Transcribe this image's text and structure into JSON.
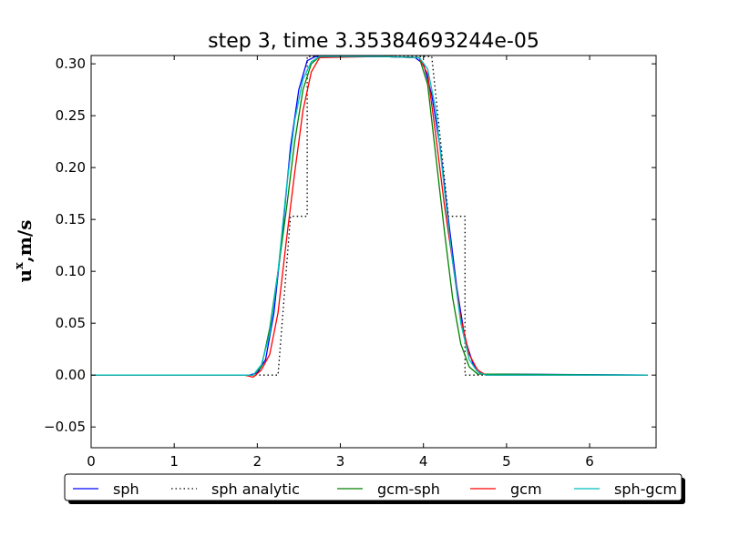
{
  "chart_data": {
    "type": "line",
    "title": "step 3, time 3.35384693244e-05",
    "xlabel": "",
    "ylabel_main": "u",
    "ylabel_sup": "x",
    "ylabel_unit": ",m/s",
    "xlim": [
      0,
      6.8
    ],
    "ylim": [
      -0.07,
      0.308
    ],
    "xticks": [
      0,
      1,
      2,
      3,
      4,
      5,
      6
    ],
    "yticks": [
      -0.05,
      0.0,
      0.05,
      0.1,
      0.15,
      0.2,
      0.25,
      0.3
    ],
    "ytick_labels": [
      "−0.05",
      "0.00",
      "0.05",
      "0.10",
      "0.15",
      "0.20",
      "0.25",
      "0.30"
    ],
    "grid": false,
    "legend_position": "below",
    "series": [
      {
        "name": "sph",
        "color": "#0000ff",
        "style": "solid",
        "x": [
          0,
          1.9,
          2.0,
          2.1,
          2.2,
          2.3,
          2.4,
          2.5,
          2.6,
          2.7,
          2.8,
          3.5,
          3.9,
          4.0,
          4.1,
          4.2,
          4.3,
          4.4,
          4.5,
          4.6,
          4.7,
          6.7
        ],
        "y": [
          0,
          0,
          0.002,
          0.015,
          0.06,
          0.135,
          0.22,
          0.275,
          0.303,
          0.307,
          0.307,
          0.307,
          0.306,
          0.3,
          0.27,
          0.22,
          0.15,
          0.085,
          0.035,
          0.01,
          0.001,
          0
        ]
      },
      {
        "name": "sph analytic",
        "color": "#000000",
        "style": "dotted",
        "x": [
          0,
          2.25,
          2.25,
          2.4,
          2.4,
          2.6,
          2.6,
          4.1,
          4.1,
          4.3,
          4.3,
          4.5,
          4.5,
          6.7
        ],
        "y": [
          0,
          0,
          0.0,
          0.153,
          0.153,
          0.153,
          0.307,
          0.307,
          0.307,
          0.153,
          0.153,
          0.153,
          0.0,
          0
        ]
      },
      {
        "name": "gcm-sph",
        "color": "#008000",
        "style": "solid",
        "x": [
          0,
          1.95,
          2.05,
          2.15,
          2.25,
          2.35,
          2.45,
          2.55,
          2.65,
          2.75,
          3.5,
          3.95,
          4.05,
          4.15,
          4.25,
          4.35,
          4.45,
          4.55,
          4.65,
          6.7
        ],
        "y": [
          0,
          0,
          0.008,
          0.045,
          0.1,
          0.16,
          0.225,
          0.275,
          0.3,
          0.307,
          0.307,
          0.306,
          0.28,
          0.21,
          0.14,
          0.075,
          0.03,
          0.008,
          0.001,
          0
        ]
      },
      {
        "name": "gcm",
        "color": "#ff0000",
        "style": "solid",
        "x": [
          0,
          1.85,
          1.95,
          2.05,
          2.15,
          2.25,
          2.35,
          2.45,
          2.55,
          2.65,
          2.75,
          3.5,
          3.95,
          4.05,
          4.15,
          4.25,
          4.35,
          4.45,
          4.55,
          4.65,
          4.75,
          6.7
        ],
        "y": [
          0,
          0,
          -0.002,
          0.005,
          0.02,
          0.06,
          0.13,
          0.195,
          0.255,
          0.292,
          0.306,
          0.307,
          0.306,
          0.29,
          0.23,
          0.165,
          0.11,
          0.055,
          0.02,
          0.005,
          0.0,
          0
        ]
      },
      {
        "name": "sph-gcm",
        "color": "#00bfbf",
        "style": "solid",
        "x": [
          0,
          1.95,
          2.05,
          2.15,
          2.25,
          2.35,
          2.45,
          2.55,
          2.65,
          2.75,
          3.5,
          3.95,
          4.05,
          4.15,
          4.25,
          4.35,
          4.45,
          4.55,
          4.65,
          4.75,
          6.7
        ],
        "y": [
          0,
          0,
          0.01,
          0.04,
          0.1,
          0.18,
          0.245,
          0.285,
          0.302,
          0.307,
          0.307,
          0.306,
          0.295,
          0.255,
          0.18,
          0.11,
          0.05,
          0.015,
          0.003,
          0.0,
          0
        ]
      }
    ]
  }
}
